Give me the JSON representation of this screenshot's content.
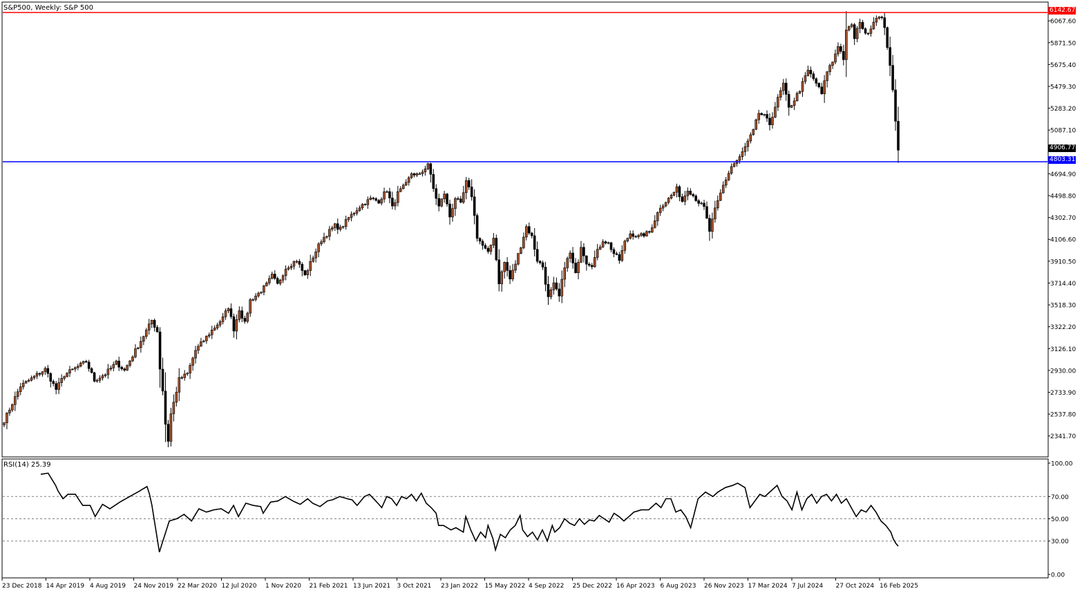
{
  "header": {
    "title": "S&P500, Weekly:  S&P 500"
  },
  "rsi_pane": {
    "title": "RSI(14) 25.39"
  },
  "colors": {
    "bull": "#ffffff",
    "bear": "#000000",
    "wick": "#000000",
    "up_fill": "#a0522d",
    "resistance": "#ff0000",
    "support": "#0000ff",
    "grid": "#808080"
  },
  "price_labels": {
    "resistance": "6142.67",
    "current": "4906.77",
    "support": "4803.31"
  },
  "chart_data": [
    {
      "type": "candlestick",
      "title": "S&P500, Weekly:  S&P 500",
      "x_tick_labels": [
        "23 Dec 2018",
        "14 Apr 2019",
        "4 Aug 2019",
        "24 Nov 2019",
        "22 Mar 2020",
        "12 Jul 2020",
        "1 Nov 2020",
        "21 Feb 2021",
        "13 Jun 2021",
        "3 Oct 2021",
        "23 Jan 2022",
        "15 May 2022",
        "4 Sep 2022",
        "25 Dec 2022",
        "16 Apr 2023",
        "6 Aug 2023",
        "26 Nov 2023",
        "17 Mar 2024",
        "7 Jul 2024",
        "27 Oct 2024",
        "16 Feb 2025"
      ],
      "y_tick_labels": [
        "6067.60",
        "5871.50",
        "5675.40",
        "5479.30",
        "5283.20",
        "5087.10",
        "4694.90",
        "4498.80",
        "4302.70",
        "4106.60",
        "3910.50",
        "3714.40",
        "3518.30",
        "3322.20",
        "3126.10",
        "2930.00",
        "2733.90",
        "2537.80",
        "2341.70"
      ],
      "ylim": [
        2160,
        6230
      ],
      "horizontal_lines": [
        {
          "value": 6142.67,
          "label": "6142.67",
          "color": "#ff0000"
        },
        {
          "value": 4803.31,
          "label": "4803.31",
          "color": "#0000ff"
        }
      ],
      "last_close": 4906.77,
      "anchors": [
        [
          0,
          2480
        ],
        [
          6,
          2790
        ],
        [
          15,
          2940
        ],
        [
          19,
          2760
        ],
        [
          22,
          2890
        ],
        [
          30,
          3010
        ],
        [
          33,
          2840
        ],
        [
          37,
          2900
        ],
        [
          41,
          3000
        ],
        [
          44,
          2930
        ],
        [
          53,
          3330
        ],
        [
          54,
          3380
        ],
        [
          56,
          3280
        ],
        [
          57,
          2950
        ],
        [
          58,
          2750
        ],
        [
          59,
          2450
        ],
        [
          60,
          2300
        ],
        [
          61,
          2540
        ],
        [
          62,
          2640
        ],
        [
          64,
          2850
        ],
        [
          67,
          2900
        ],
        [
          70,
          3110
        ],
        [
          73,
          3200
        ],
        [
          76,
          3290
        ],
        [
          80,
          3400
        ],
        [
          82,
          3500
        ],
        [
          84,
          3300
        ],
        [
          86,
          3480
        ],
        [
          88,
          3350
        ],
        [
          90,
          3560
        ],
        [
          93,
          3620
        ],
        [
          96,
          3700
        ],
        [
          98,
          3780
        ],
        [
          100,
          3700
        ],
        [
          103,
          3850
        ],
        [
          107,
          3920
        ],
        [
          110,
          3780
        ],
        [
          113,
          3950
        ],
        [
          116,
          4100
        ],
        [
          119,
          4180
        ],
        [
          121,
          4230
        ],
        [
          123,
          4200
        ],
        [
          126,
          4300
        ],
        [
          130,
          4400
        ],
        [
          134,
          4470
        ],
        [
          137,
          4450
        ],
        [
          140,
          4550
        ],
        [
          142,
          4390
        ],
        [
          144,
          4520
        ],
        [
          147,
          4600
        ],
        [
          149,
          4700
        ],
        [
          152,
          4680
        ],
        [
          154,
          4750
        ],
        [
          155,
          4790
        ],
        [
          157,
          4560
        ],
        [
          159,
          4400
        ],
        [
          161,
          4520
        ],
        [
          163,
          4310
        ],
        [
          165,
          4480
        ],
        [
          167,
          4420
        ],
        [
          169,
          4620
        ],
        [
          171,
          4500
        ],
        [
          173,
          4130
        ],
        [
          175,
          4050
        ],
        [
          177,
          3980
        ],
        [
          179,
          4130
        ],
        [
          181,
          3720
        ],
        [
          183,
          3900
        ],
        [
          185,
          3750
        ],
        [
          187,
          3890
        ],
        [
          189,
          4050
        ],
        [
          191,
          4220
        ],
        [
          193,
          4130
        ],
        [
          195,
          3920
        ],
        [
          197,
          3860
        ],
        [
          199,
          3580
        ],
        [
          201,
          3700
        ],
        [
          203,
          3590
        ],
        [
          205,
          3870
        ],
        [
          207,
          3980
        ],
        [
          209,
          3790
        ],
        [
          211,
          4050
        ],
        [
          213,
          3900
        ],
        [
          215,
          3880
        ],
        [
          217,
          4000
        ],
        [
          219,
          4100
        ],
        [
          221,
          4070
        ],
        [
          223,
          3980
        ],
        [
          225,
          3920
        ],
        [
          227,
          4080
        ],
        [
          229,
          4160
        ],
        [
          232,
          4130
        ],
        [
          236,
          4170
        ],
        [
          240,
          4400
        ],
        [
          243,
          4470
        ],
        [
          246,
          4560
        ],
        [
          248,
          4450
        ],
        [
          250,
          4560
        ],
        [
          252,
          4500
        ],
        [
          254,
          4440
        ],
        [
          256,
          4390
        ],
        [
          258,
          4180
        ],
        [
          260,
          4370
        ],
        [
          263,
          4590
        ],
        [
          266,
          4760
        ],
        [
          269,
          4840
        ],
        [
          272,
          4980
        ],
        [
          274,
          5080
        ],
        [
          276,
          5240
        ],
        [
          278,
          5210
        ],
        [
          280,
          5140
        ],
        [
          282,
          5300
        ],
        [
          285,
          5500
        ],
        [
          287,
          5280
        ],
        [
          289,
          5360
        ],
        [
          291,
          5450
        ],
        [
          294,
          5620
        ],
        [
          297,
          5510
        ],
        [
          299,
          5410
        ],
        [
          301,
          5620
        ],
        [
          303,
          5700
        ],
        [
          305,
          5850
        ],
        [
          307,
          5730
        ],
        [
          308,
          5970
        ],
        [
          310,
          6040
        ],
        [
          311,
          5900
        ],
        [
          313,
          6070
        ],
        [
          315,
          5940
        ],
        [
          317,
          6010
        ],
        [
          319,
          6110
        ],
        [
          321,
          6080
        ],
        [
          322,
          6020
        ],
        [
          323,
          5840
        ],
        [
          324,
          5650
        ],
        [
          325,
          5440
        ],
        [
          326,
          5180
        ],
        [
          327,
          4906.77
        ]
      ]
    },
    {
      "type": "line",
      "title": "RSI(14) 25.39",
      "y_tick_labels": [
        "100.00",
        "70.00",
        "50.00",
        "30.00",
        "0.00"
      ],
      "ylim": [
        0,
        100
      ],
      "levels": [
        70,
        50,
        30
      ],
      "last_value": 25.39,
      "anchors": [
        [
          0,
          90
        ],
        [
          3,
          91
        ],
        [
          6,
          80
        ],
        [
          7,
          75
        ],
        [
          9,
          68
        ],
        [
          11,
          72
        ],
        [
          14,
          72
        ],
        [
          17,
          62
        ],
        [
          20,
          62
        ],
        [
          22,
          52
        ],
        [
          25,
          63
        ],
        [
          28,
          59
        ],
        [
          32,
          65
        ],
        [
          36,
          70
        ],
        [
          40,
          75
        ],
        [
          43,
          79
        ],
        [
          44,
          72
        ],
        [
          45,
          62
        ],
        [
          46,
          48
        ],
        [
          47,
          34
        ],
        [
          48,
          20
        ],
        [
          50,
          34
        ],
        [
          52,
          48
        ],
        [
          55,
          50
        ],
        [
          58,
          54
        ],
        [
          61,
          48
        ],
        [
          64,
          59
        ],
        [
          67,
          56
        ],
        [
          70,
          58
        ],
        [
          73,
          59
        ],
        [
          76,
          55
        ],
        [
          78,
          62
        ],
        [
          80,
          52
        ],
        [
          83,
          64
        ],
        [
          86,
          62
        ],
        [
          89,
          61
        ],
        [
          90,
          55
        ],
        [
          93,
          65
        ],
        [
          96,
          66
        ],
        [
          99,
          70
        ],
        [
          102,
          66
        ],
        [
          105,
          63
        ],
        [
          108,
          68
        ],
        [
          110,
          64
        ],
        [
          113,
          61
        ],
        [
          116,
          66
        ],
        [
          118,
          67
        ],
        [
          121,
          70
        ],
        [
          124,
          68
        ],
        [
          126,
          67
        ],
        [
          128,
          62
        ],
        [
          131,
          70
        ],
        [
          133,
          72
        ],
        [
          136,
          65
        ],
        [
          138,
          60
        ],
        [
          140,
          70
        ],
        [
          142,
          68
        ],
        [
          144,
          62
        ],
        [
          146,
          70
        ],
        [
          148,
          68
        ],
        [
          150,
          72
        ],
        [
          152,
          66
        ],
        [
          154,
          73
        ],
        [
          156,
          64
        ],
        [
          158,
          60
        ],
        [
          160,
          55
        ],
        [
          161,
          44
        ],
        [
          163,
          44
        ],
        [
          166,
          40
        ],
        [
          168,
          42
        ],
        [
          171,
          38
        ],
        [
          172,
          52
        ],
        [
          174,
          40
        ],
        [
          176,
          30
        ],
        [
          178,
          38
        ],
        [
          180,
          33
        ],
        [
          181,
          44
        ],
        [
          183,
          32
        ],
        [
          184,
          22
        ],
        [
          186,
          36
        ],
        [
          188,
          33
        ],
        [
          190,
          40
        ],
        [
          192,
          44
        ],
        [
          194,
          53
        ],
        [
          195,
          40
        ],
        [
          197,
          34
        ],
        [
          199,
          38
        ],
        [
          201,
          31
        ],
        [
          203,
          40
        ],
        [
          205,
          30
        ],
        [
          207,
          44
        ],
        [
          208,
          38
        ],
        [
          210,
          42
        ],
        [
          212,
          50
        ],
        [
          214,
          46
        ],
        [
          216,
          44
        ],
        [
          218,
          50
        ],
        [
          220,
          45
        ],
        [
          222,
          49
        ],
        [
          224,
          48
        ],
        [
          226,
          53
        ],
        [
          228,
          50
        ],
        [
          230,
          47
        ],
        [
          232,
          55
        ],
        [
          234,
          52
        ],
        [
          236,
          48
        ],
        [
          238,
          52
        ],
        [
          240,
          56
        ],
        [
          243,
          58
        ],
        [
          246,
          58
        ],
        [
          249,
          64
        ],
        [
          251,
          60
        ],
        [
          253,
          68
        ],
        [
          255,
          68
        ],
        [
          257,
          56
        ],
        [
          259,
          58
        ],
        [
          261,
          52
        ],
        [
          263,
          42
        ],
        [
          266,
          68
        ],
        [
          269,
          74
        ],
        [
          272,
          70
        ],
        [
          274,
          74
        ],
        [
          277,
          78
        ],
        [
          280,
          80
        ],
        [
          282,
          82
        ],
        [
          285,
          78
        ],
        [
          287,
          60
        ],
        [
          289,
          66
        ],
        [
          291,
          72
        ],
        [
          293,
          70
        ],
        [
          296,
          76
        ],
        [
          298,
          80
        ],
        [
          300,
          70
        ],
        [
          302,
          66
        ],
        [
          304,
          58
        ],
        [
          306,
          74
        ],
        [
          308,
          58
        ],
        [
          310,
          68
        ],
        [
          312,
          72
        ],
        [
          314,
          64
        ],
        [
          316,
          70
        ],
        [
          318,
          72
        ],
        [
          320,
          66
        ],
        [
          322,
          72
        ],
        [
          324,
          64
        ],
        [
          326,
          68
        ],
        [
          328,
          60
        ],
        [
          330,
          52
        ],
        [
          332,
          58
        ],
        [
          334,
          56
        ],
        [
          336,
          62
        ],
        [
          338,
          56
        ],
        [
          340,
          48
        ],
        [
          342,
          44
        ],
        [
          344,
          38
        ],
        [
          345,
          32
        ],
        [
          346,
          28
        ],
        [
          347,
          25.39
        ]
      ]
    }
  ]
}
